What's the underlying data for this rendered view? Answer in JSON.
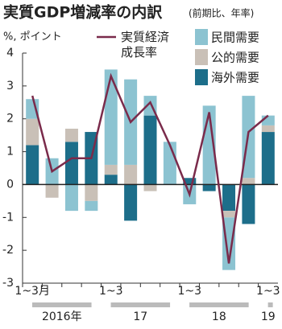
{
  "chart_data": {
    "type": "stacked-bar-line",
    "title": "実質GDP増減率の内訳",
    "subtitle": "(前期比、年率)",
    "y_label": "%, ポイント",
    "categories": [
      "1~3月",
      null,
      null,
      null,
      "1~3",
      null,
      null,
      null,
      "1~3",
      null,
      null,
      null,
      "1~3"
    ],
    "years": [
      "2016年",
      "17",
      "18",
      "19"
    ],
    "series": [
      {
        "name": "民間需要",
        "color": "#8cc3d1",
        "values": [
          0.6,
          0.8,
          -0.8,
          -0.3,
          2.9,
          2.6,
          0.6,
          1.3,
          -0.6,
          2.4,
          -1.6,
          2.5,
          0.3
        ]
      },
      {
        "name": "公的需要",
        "color": "#c9c0b7",
        "values": [
          0.8,
          -0.4,
          0.4,
          -0.5,
          0.3,
          0.6,
          -0.2,
          0,
          0,
          0,
          -0.2,
          0.2,
          0.2
        ]
      },
      {
        "name": "海外需要",
        "color": "#1d6e8a",
        "values": [
          1.2,
          0,
          1.3,
          1.6,
          0.3,
          -1.1,
          2.1,
          0,
          0.2,
          -0.2,
          -0.8,
          -1.2,
          1.6
        ]
      }
    ],
    "line": {
      "name": "実質経済成長率",
      "color": "#7a2b4b",
      "values": [
        2.7,
        0.4,
        0.8,
        0.8,
        3.3,
        1.9,
        2.5,
        1.2,
        -0.3,
        2.2,
        -2.4,
        1.6,
        2.1
      ]
    },
    "ylim": [
      -3,
      4
    ],
    "yticks": [
      -3,
      -2,
      -1,
      0,
      1,
      2,
      3,
      4
    ]
  }
}
